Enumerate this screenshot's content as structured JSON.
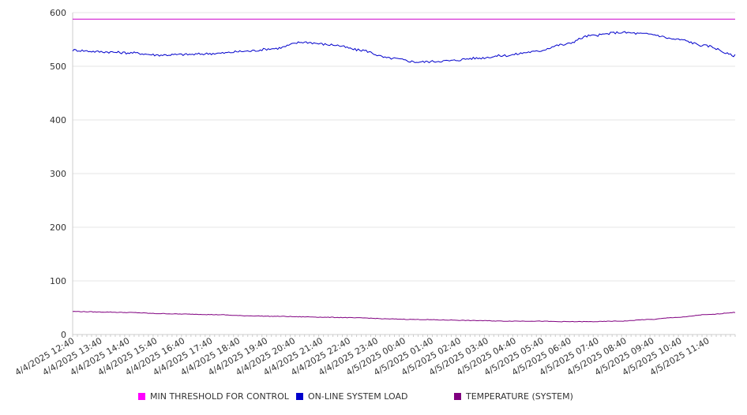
{
  "chart_data": {
    "type": "line",
    "title": "",
    "xlabel": "",
    "ylabel": "",
    "ylim": [
      0,
      600
    ],
    "yticks": [
      "0",
      "100",
      "200",
      "300",
      "400",
      "500",
      "600"
    ],
    "grid": true,
    "legend_position": "bottom",
    "categories": [
      "4/4/2025 12:40",
      "4/4/2025 13:40",
      "4/4/2025 14:40",
      "4/4/2025 15:40",
      "4/4/2025 16:40",
      "4/4/2025 17:40",
      "4/4/2025 18:40",
      "4/4/2025 19:40",
      "4/4/2025 20:40",
      "4/4/2025 21:40",
      "4/4/2025 22:40",
      "4/4/2025 23:40",
      "4/5/2025 00:40",
      "4/5/2025 01:40",
      "4/5/2025 02:40",
      "4/5/2025 03:40",
      "4/5/2025 04:40",
      "4/5/2025 05:40",
      "4/5/2025 06:40",
      "4/5/2025 07:40",
      "4/5/2025 08:40",
      "4/5/2025 09:40",
      "4/5/2025 10:40",
      "4/5/2025 11:40"
    ],
    "series": [
      {
        "name": "MIN THRESHOLD FOR CONTROL",
        "color": "#cc00cc",
        "values": [
          588,
          588,
          588,
          588,
          588,
          588,
          588,
          588,
          588,
          588,
          588,
          588,
          588,
          588,
          588,
          588,
          588,
          588,
          588,
          588,
          588,
          588,
          588,
          588
        ]
      },
      {
        "name": "ON-LINE SYSTEM LOAD",
        "color": "#0000cc",
        "values": [
          530,
          527,
          525,
          521,
          522,
          524,
          528,
          533,
          545,
          540,
          530,
          515,
          508,
          510,
          515,
          520,
          527,
          540,
          557,
          563,
          560,
          550,
          538,
          520
        ]
      },
      {
        "name": "TEMPERATURE (SYSTEM)",
        "color": "#800080",
        "values": [
          43,
          42,
          41,
          39,
          38,
          37,
          35,
          34,
          33,
          32,
          31,
          29,
          28,
          27,
          26,
          25,
          25,
          24,
          24,
          25,
          28,
          32,
          37,
          41
        ]
      }
    ]
  }
}
